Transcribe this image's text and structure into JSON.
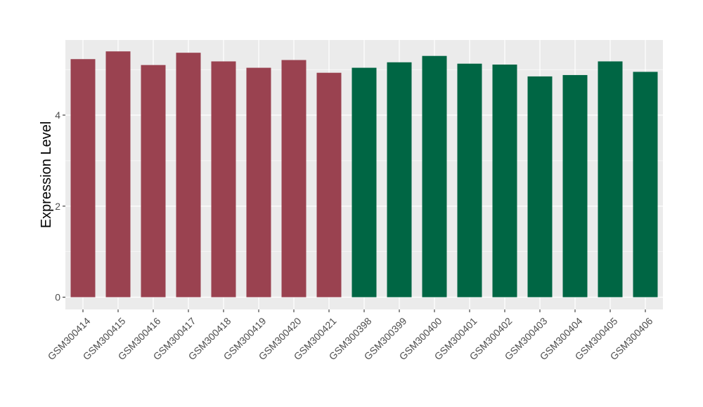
{
  "chart_data": {
    "type": "bar",
    "title": "",
    "xlabel": "",
    "ylabel": "Expression Level",
    "ylim": [
      -0.27,
      5.65
    ],
    "yticks": [
      0,
      2,
      4
    ],
    "grid": true,
    "legend": "none",
    "categories": [
      "GSM300414",
      "GSM300415",
      "GSM300416",
      "GSM300417",
      "GSM300418",
      "GSM300419",
      "GSM300420",
      "GSM300421",
      "GSM300398",
      "GSM300399",
      "GSM300400",
      "GSM300401",
      "GSM300402",
      "GSM300403",
      "GSM300404",
      "GSM300405",
      "GSM300406"
    ],
    "values": [
      5.23,
      5.4,
      5.1,
      5.37,
      5.18,
      5.04,
      5.21,
      4.93,
      5.04,
      5.16,
      5.3,
      5.13,
      5.11,
      4.85,
      4.88,
      5.18,
      4.95
    ],
    "bar_colors": [
      "#9a4250",
      "#9a4250",
      "#9a4250",
      "#9a4250",
      "#9a4250",
      "#9a4250",
      "#9a4250",
      "#9a4250",
      "#006644",
      "#006644",
      "#006644",
      "#006644",
      "#006644",
      "#006644",
      "#006644",
      "#006644",
      "#006644"
    ]
  },
  "style": {
    "panel_background": "#ebebeb",
    "grid_color": "#ffffff"
  }
}
